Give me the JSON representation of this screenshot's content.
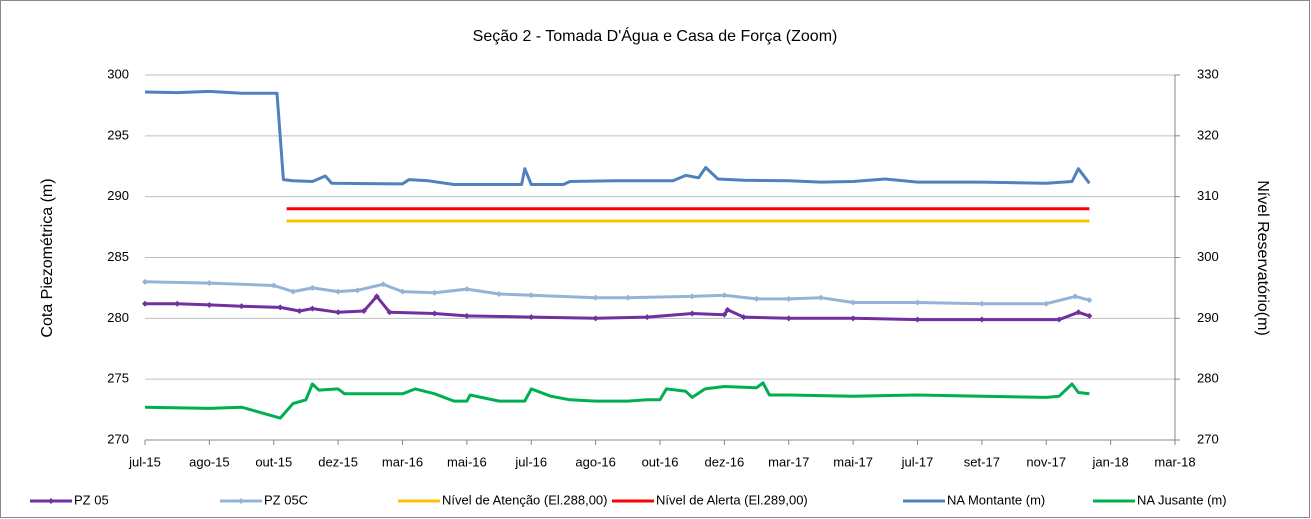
{
  "chart_data": {
    "type": "line",
    "title": "Seção 2 - Tomada D'Água e Casa de Força (Zoom)",
    "ylabel": "Cota Piezométrica (m)",
    "y2label": "Nível Reservatório(m)",
    "xlim": [
      0,
      16
    ],
    "xticks": [
      {
        "value": 0,
        "label": "jul-15"
      },
      {
        "value": 1,
        "label": "ago-15"
      },
      {
        "value": 2,
        "label": "out-15"
      },
      {
        "value": 3,
        "label": "dez-15"
      },
      {
        "value": 4,
        "label": "mar-16"
      },
      {
        "value": 5,
        "label": "mai-16"
      },
      {
        "value": 6,
        "label": "jul-16"
      },
      {
        "value": 7,
        "label": "ago-16"
      },
      {
        "value": 8,
        "label": "out-16"
      },
      {
        "value": 9,
        "label": "dez-16"
      },
      {
        "value": 10,
        "label": "mar-17"
      },
      {
        "value": 11,
        "label": "mai-17"
      },
      {
        "value": 12,
        "label": "jul-17"
      },
      {
        "value": 13,
        "label": "set-17"
      },
      {
        "value": 14,
        "label": "nov-17"
      },
      {
        "value": 15,
        "label": "jan-18"
      },
      {
        "value": 16,
        "label": "mar-18"
      }
    ],
    "ylim": [
      270,
      300
    ],
    "yticks": [
      270,
      275,
      280,
      285,
      290,
      295,
      300
    ],
    "y2lim": [
      270,
      330
    ],
    "y2ticks": [
      270,
      280,
      290,
      300,
      310,
      320,
      330
    ],
    "grid": true,
    "legend": "bottom",
    "series": [
      {
        "name": "PZ 05",
        "color": "#7030a0",
        "markers": true,
        "x": [
          0,
          0.5,
          1,
          1.5,
          2.1,
          2.4,
          2.6,
          3,
          3.4,
          3.6,
          3.8,
          4.5,
          5,
          6,
          7,
          7.8,
          8.5,
          9,
          9.05,
          9.3,
          10,
          11,
          12,
          13,
          14.2,
          14.5,
          14.67
        ],
        "values": [
          281.2,
          281.2,
          281.1,
          281.0,
          280.9,
          280.6,
          280.8,
          280.5,
          280.6,
          281.8,
          280.5,
          280.4,
          280.2,
          280.1,
          280.0,
          280.1,
          280.4,
          280.3,
          280.7,
          280.1,
          280.0,
          280.0,
          279.9,
          279.9,
          279.9,
          280.5,
          280.2
        ]
      },
      {
        "name": "PZ 05C",
        "color": "#95b3d7",
        "markers": true,
        "x": [
          0,
          1,
          2,
          2.3,
          2.6,
          3,
          3.3,
          3.7,
          4,
          4.5,
          5,
          5.5,
          6,
          7,
          7.5,
          8.5,
          9,
          9.5,
          10,
          10.5,
          11,
          12,
          13,
          14,
          14.45,
          14.67
        ],
        "values": [
          283.0,
          282.9,
          282.7,
          282.2,
          282.5,
          282.2,
          282.3,
          282.8,
          282.2,
          282.1,
          282.4,
          282.0,
          281.9,
          281.7,
          281.7,
          281.8,
          281.9,
          281.6,
          281.6,
          281.7,
          281.3,
          281.3,
          281.2,
          281.2,
          281.8,
          281.5
        ]
      },
      {
        "name": "Nível de Atenção (El.288,00)",
        "color": "#ffc000",
        "x": [
          2.2,
          14.67
        ],
        "values": [
          288,
          288
        ]
      },
      {
        "name": "Nível de Alerta (El.289,00)",
        "color": "#ff0000",
        "x": [
          2.2,
          14.67
        ],
        "values": [
          289,
          289
        ]
      },
      {
        "name": "NA Montante (m)",
        "color": "#4f81bd",
        "axis": "y2",
        "x": [
          0,
          0.5,
          1,
          1.5,
          2.05,
          2.15,
          2.3,
          2.6,
          2.8,
          2.9,
          4,
          4.1,
          4.4,
          4.8,
          5.5,
          5.85,
          5.9,
          6.0,
          6.5,
          6.6,
          7.3,
          8.2,
          8.4,
          8.6,
          8.71,
          8.9,
          9.3,
          10,
          10.5,
          11,
          11.5,
          12,
          13,
          14,
          14.4,
          14.5,
          14.67
        ],
        "values": [
          327.2,
          327.1,
          327.3,
          327.0,
          327.0,
          312.8,
          312.6,
          312.5,
          313.4,
          312.2,
          312.1,
          312.8,
          312.6,
          312.0,
          312.0,
          312.0,
          314.6,
          312.0,
          312.0,
          312.5,
          312.6,
          312.6,
          313.5,
          313.1,
          314.8,
          312.9,
          312.7,
          312.6,
          312.4,
          312.5,
          312.9,
          312.4,
          312.4,
          312.2,
          312.5,
          314.6,
          312.2
        ]
      },
      {
        "name": "NA Jusante (m)",
        "color": "#00b050",
        "axis": "y2",
        "x": [
          0,
          1,
          1.5,
          2.1,
          2.3,
          2.5,
          2.6,
          2.7,
          3.0,
          3.1,
          4,
          4.2,
          4.5,
          4.8,
          5,
          5.05,
          5.5,
          5.9,
          6.0,
          6.3,
          6.6,
          7,
          7.5,
          7.8,
          8.0,
          8.1,
          8.4,
          8.5,
          8.7,
          9,
          9.5,
          9.6,
          9.7,
          10,
          11,
          12,
          13,
          14,
          14.2,
          14.4,
          14.5,
          14.67
        ],
        "values": [
          275.4,
          275.2,
          275.4,
          273.6,
          276.0,
          276.6,
          279.2,
          278.2,
          278.4,
          277.6,
          277.6,
          278.4,
          277.6,
          276.4,
          276.4,
          277.4,
          276.4,
          276.4,
          278.4,
          277.2,
          276.6,
          276.4,
          276.4,
          276.6,
          276.6,
          278.4,
          278.0,
          277.0,
          278.4,
          278.8,
          278.6,
          279.4,
          277.4,
          277.4,
          277.2,
          277.4,
          277.2,
          277.0,
          277.2,
          279.2,
          277.8,
          277.6
        ]
      }
    ]
  }
}
